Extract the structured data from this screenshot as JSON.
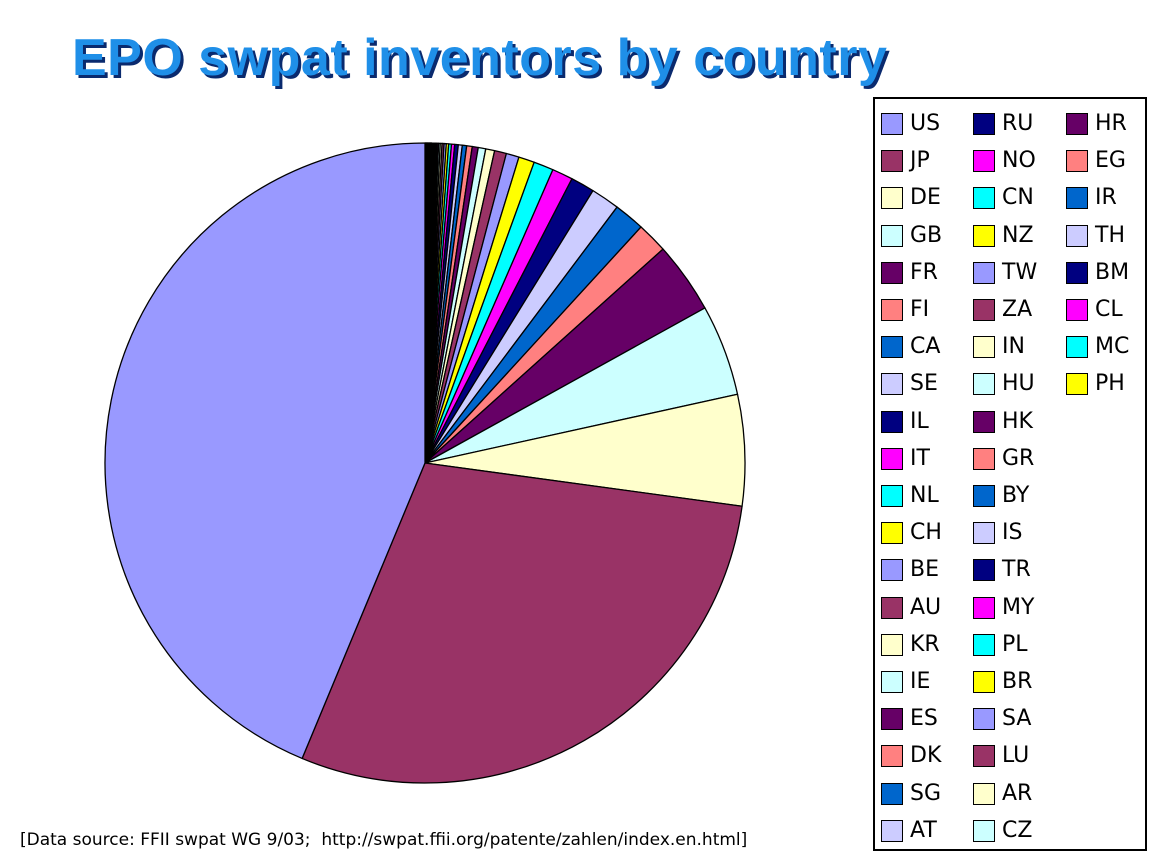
{
  "title": "EPO swpat inventors  by country",
  "source_note": "[Data source: FFII swpat WG 9/03;  http://swpat.ffii.org/patente/zahlen/index.en.html]",
  "palette": [
    "#9999ff",
    "#993366",
    "#ffffcc",
    "#ccffff",
    "#660066",
    "#ff8080",
    "#0066cc",
    "#ccccff",
    "#000080",
    "#ff00ff",
    "#00ffff",
    "#ffff00"
  ],
  "chart_data": {
    "type": "pie",
    "title": "EPO swpat inventors  by country",
    "legend_position": "right",
    "unit": "percent share (estimated from slice angles)",
    "categories": [
      "US",
      "JP",
      "DE",
      "GB",
      "FR",
      "FI",
      "CA",
      "SE",
      "IL",
      "IT",
      "NL",
      "CH",
      "BE",
      "AU",
      "KR",
      "IE",
      "ES",
      "DK",
      "SG",
      "AT",
      "RU",
      "NO",
      "CN",
      "NZ",
      "TW",
      "ZA",
      "IN",
      "HU",
      "HK",
      "GR",
      "BY",
      "IS",
      "TR",
      "MY",
      "PL",
      "BR",
      "SA",
      "LU",
      "AR",
      "CZ",
      "HR",
      "EG",
      "IR",
      "TH",
      "BM",
      "CL",
      "MC",
      "PH"
    ],
    "values": [
      43.7,
      29.1,
      5.6,
      4.6,
      3.6,
      1.55,
      1.55,
      1.45,
      1.2,
      1.05,
      1.0,
      0.8,
      0.65,
      0.6,
      0.45,
      0.38,
      0.3,
      0.28,
      0.22,
      0.2,
      0.18,
      0.16,
      0.14,
      0.12,
      0.11,
      0.1,
      0.09,
      0.08,
      0.07,
      0.06,
      0.05,
      0.05,
      0.04,
      0.04,
      0.04,
      0.04,
      0.03,
      0.03,
      0.03,
      0.03,
      0.03,
      0.02,
      0.02,
      0.02,
      0.02,
      0.02,
      0.02,
      0.02
    ]
  }
}
